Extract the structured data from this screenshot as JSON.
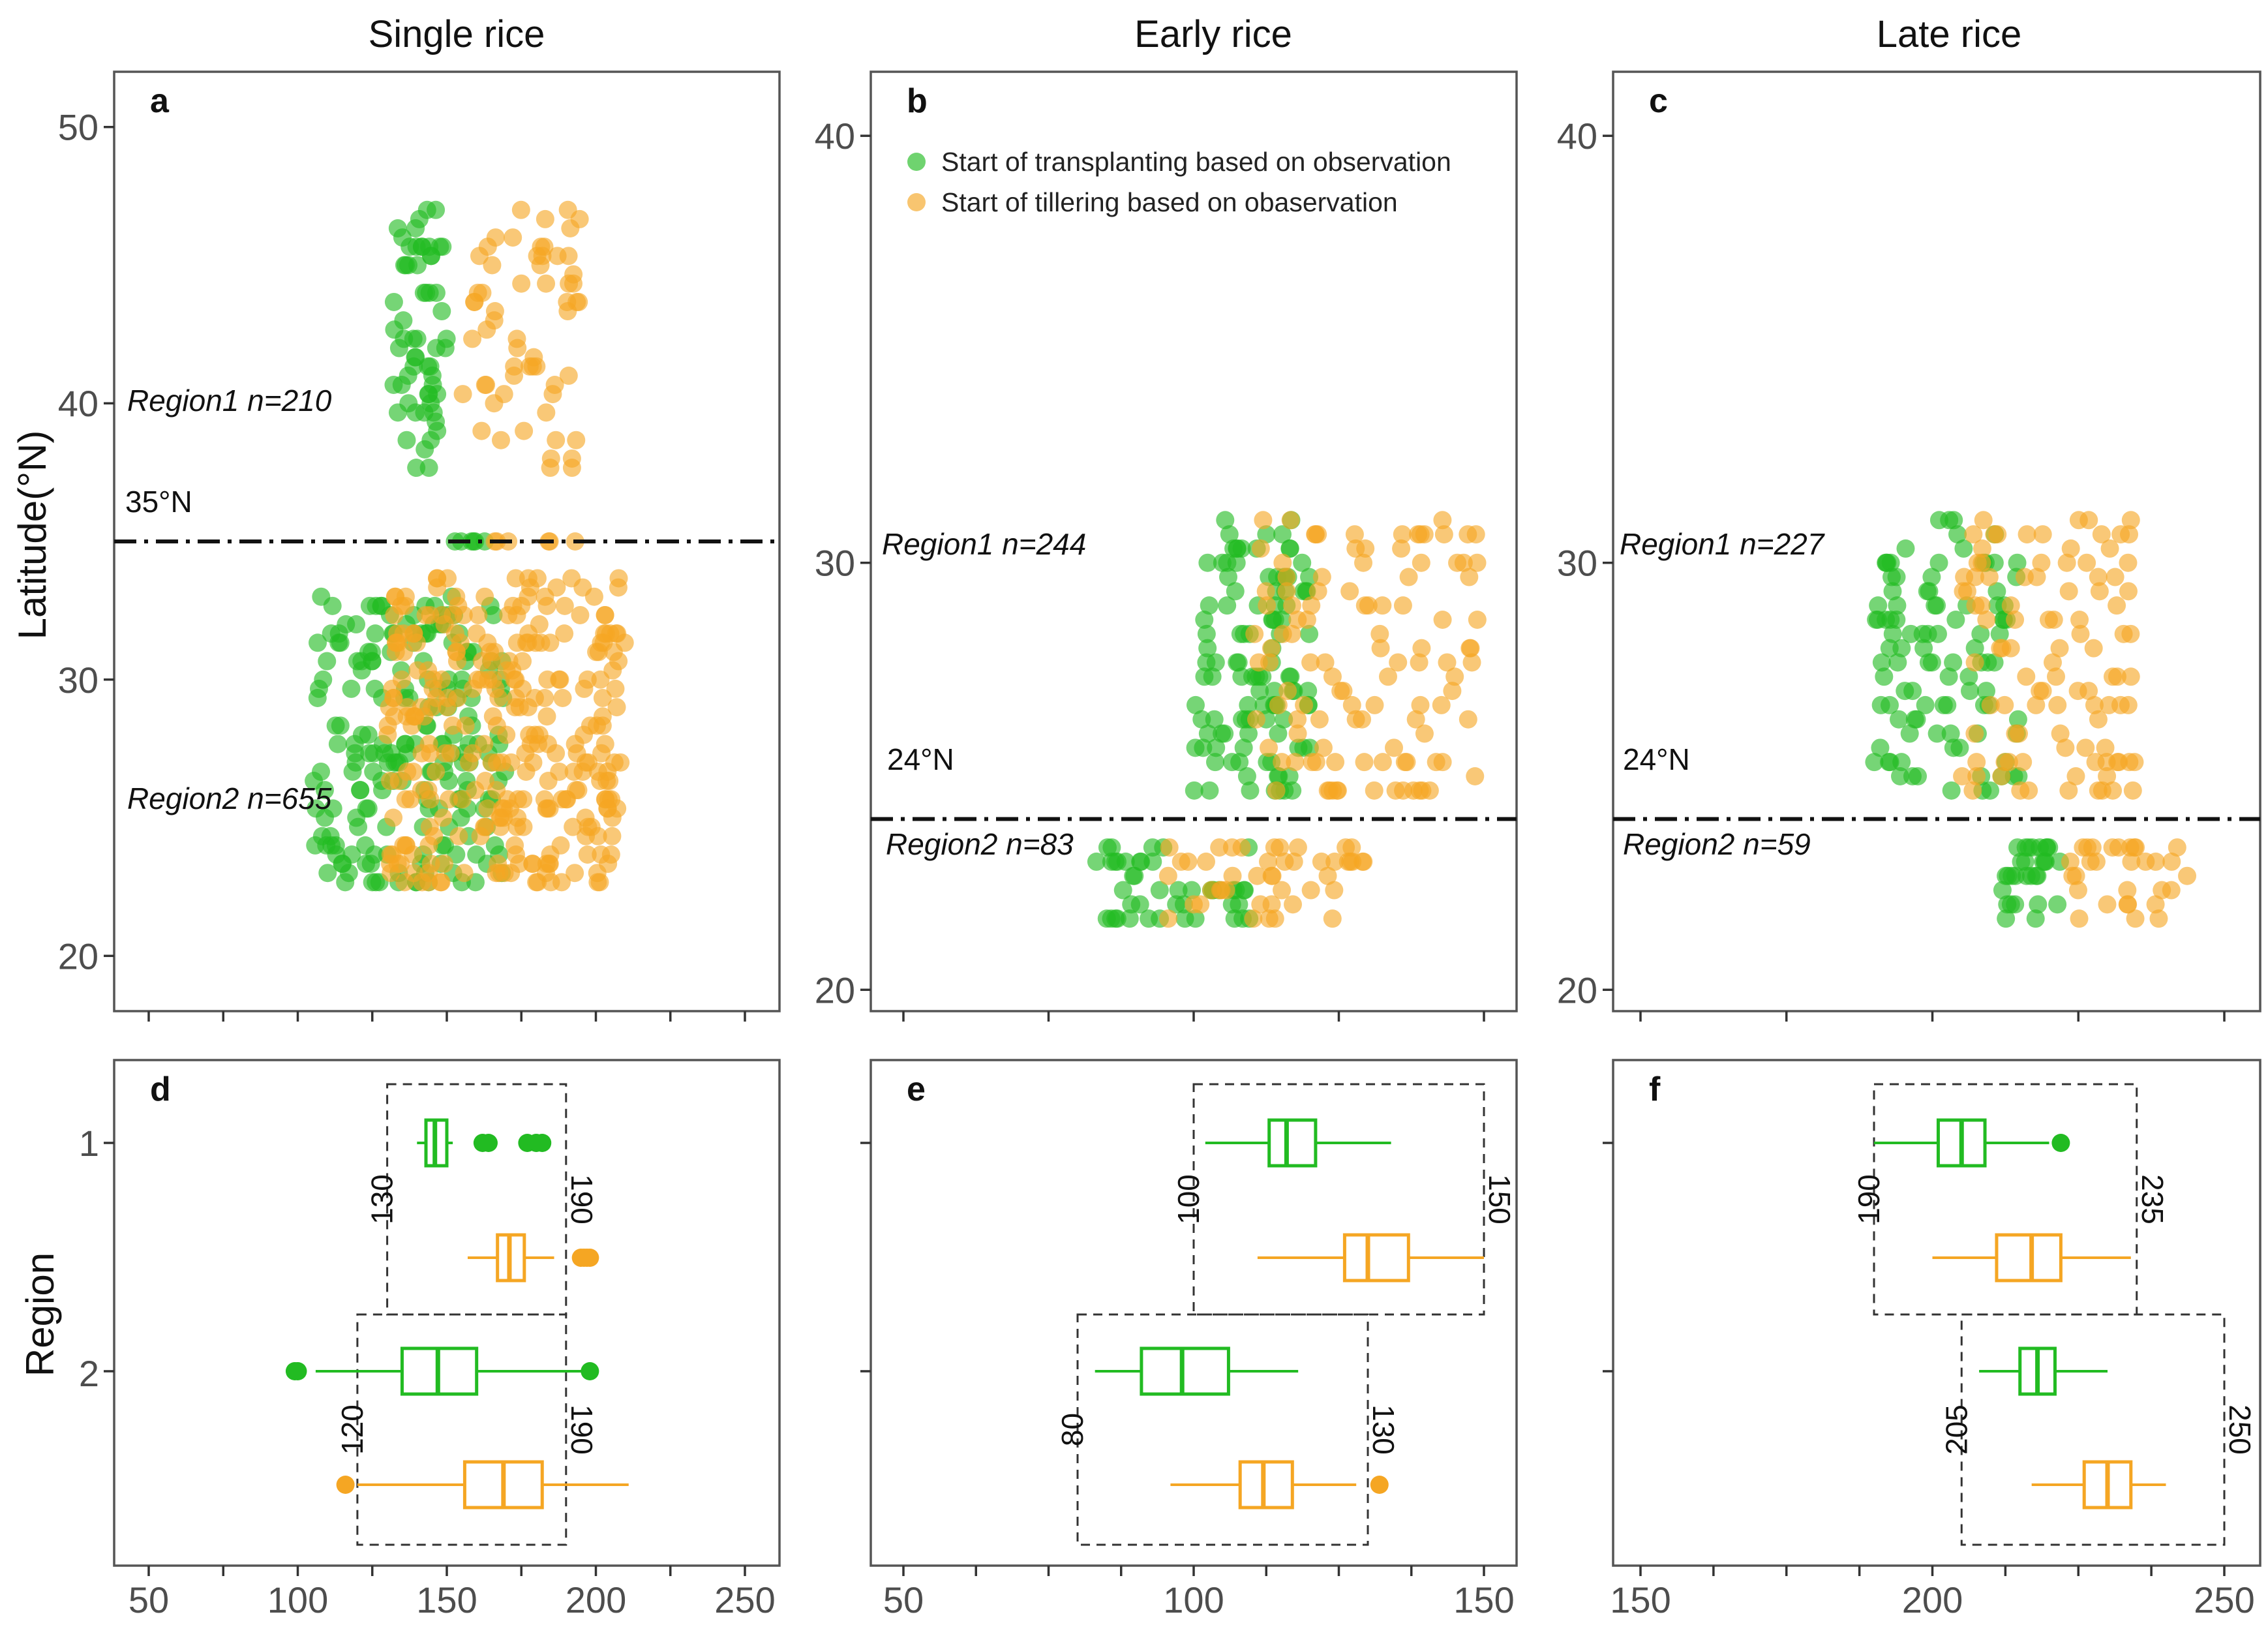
{
  "colors": {
    "transplanting": "#22bb22",
    "tillering": "#f5a623",
    "frame": "#555555"
  },
  "columns": [
    {
      "title": "Single rice"
    },
    {
      "title": "Early rice"
    },
    {
      "title": "Late rice"
    }
  ],
  "axes": {
    "latitude_title": "Latitude(°N)",
    "region_title": "Region",
    "region_ticks": [
      "1",
      "2"
    ]
  },
  "legend": {
    "transplanting": "Start of transplanting based on observation",
    "tillering": "Start of tillering based on obaservation"
  },
  "chart_data": [
    {
      "panel": "a",
      "type": "scatter",
      "title": "Single rice",
      "ylabel": "Latitude(°N)",
      "xlim": [
        50,
        250
      ],
      "ylim": [
        18,
        52
      ],
      "yticks": [
        20,
        30,
        40,
        50
      ],
      "divider": {
        "lat": 35,
        "label": "35°N"
      },
      "region_labels": [
        "Region1 n=210",
        "Region2 n=655"
      ],
      "series": [
        {
          "name": "Start of transplanting based on observation",
          "clusters": [
            {
              "x_range": [
                132,
                150
              ],
              "lat_range": [
                37.5,
                47
              ],
              "n": 60
            },
            {
              "x_range": [
                105,
                170
              ],
              "lat_range": [
                22.5,
                33
              ],
              "n": 200
            },
            {
              "x_range": [
                150,
                165
              ],
              "lat_range": [
                35,
                35
              ],
              "n": 6
            }
          ]
        },
        {
          "name": "Start of tillering based on obaservation",
          "clusters": [
            {
              "x_range": [
                155,
                195
              ],
              "lat_range": [
                37.5,
                47
              ],
              "n": 60
            },
            {
              "x_range": [
                130,
                210
              ],
              "lat_range": [
                22.5,
                34
              ],
              "n": 300
            },
            {
              "x_range": [
                165,
                195
              ],
              "lat_range": [
                35,
                35
              ],
              "n": 6
            }
          ]
        }
      ]
    },
    {
      "panel": "b",
      "type": "scatter",
      "title": "Early rice",
      "xlim": [
        50,
        150
      ],
      "ylim": [
        19.5,
        41.5
      ],
      "yticks": [
        20,
        30,
        40
      ],
      "divider": {
        "lat": 24,
        "label": "24°N"
      },
      "region_labels": [
        "Region1 n=244",
        "Region2 n=83"
      ],
      "series": [
        {
          "name": "Start of transplanting based on observation",
          "clusters": [
            {
              "x_range": [
                100,
                120
              ],
              "lat_range": [
                24.5,
                31
              ],
              "n": 110
            },
            {
              "x_range": [
                82,
                110
              ],
              "lat_range": [
                21.5,
                23.5
              ],
              "n": 45
            }
          ]
        },
        {
          "name": "Start of tillering based on obaservation",
          "clusters": [
            {
              "x_range": [
                110,
                150
              ],
              "lat_range": [
                24.5,
                31
              ],
              "n": 110
            },
            {
              "x_range": [
                95,
                130
              ],
              "lat_range": [
                21.5,
                23.5
              ],
              "n": 45
            }
          ]
        }
      ]
    },
    {
      "panel": "c",
      "type": "scatter",
      "title": "Late rice",
      "xlim": [
        150,
        250
      ],
      "ylim": [
        19.5,
        41.5
      ],
      "yticks": [
        20,
        30,
        40
      ],
      "divider": {
        "lat": 24,
        "label": "24°N"
      },
      "region_labels": [
        "Region1 n=227",
        "Region2 n=59"
      ],
      "series": [
        {
          "name": "Start of transplanting based on observation",
          "clusters": [
            {
              "x_range": [
                190,
                215
              ],
              "lat_range": [
                24.5,
                31
              ],
              "n": 100
            },
            {
              "x_range": [
                212,
                222
              ],
              "lat_range": [
                21.5,
                23.5
              ],
              "n": 30
            }
          ]
        },
        {
          "name": "Start of tillering based on obaservation",
          "clusters": [
            {
              "x_range": [
                205,
                235
              ],
              "lat_range": [
                24.5,
                31
              ],
              "n": 100
            },
            {
              "x_range": [
                222,
                245
              ],
              "lat_range": [
                21.5,
                23.5
              ],
              "n": 30
            }
          ]
        }
      ]
    },
    {
      "panel": "d",
      "type": "boxplot",
      "xlim": [
        50,
        250
      ],
      "xticks": [
        50,
        100,
        150,
        200,
        250
      ],
      "ylabel": "Region",
      "boxes": [
        {
          "region": "1",
          "series": "transplanting",
          "min": 140,
          "q1": 143,
          "median": 146,
          "q3": 150,
          "max": 152,
          "outliers": [
            162,
            164,
            177,
            180,
            182
          ]
        },
        {
          "region": "1",
          "series": "tillering",
          "min": 157,
          "q1": 167,
          "median": 171,
          "q3": 176,
          "max": 186,
          "outliers": [
            195,
            196,
            197,
            198
          ]
        },
        {
          "region": "2",
          "series": "transplanting",
          "min": 106,
          "q1": 135,
          "median": 147,
          "q3": 160,
          "max": 196,
          "outliers": [
            99,
            100,
            198
          ]
        },
        {
          "region": "2",
          "series": "tillering",
          "min": 120,
          "q1": 156,
          "median": 169,
          "q3": 182,
          "max": 211,
          "outliers": [
            116
          ]
        }
      ],
      "windows": [
        {
          "region": "1",
          "from": 130,
          "to": 190,
          "labels": [
            "130",
            "190"
          ]
        },
        {
          "region": "2",
          "from": 120,
          "to": 190,
          "labels": [
            "120",
            "190"
          ]
        }
      ]
    },
    {
      "panel": "e",
      "type": "boxplot",
      "xlim": [
        50,
        150
      ],
      "xticks": [
        50,
        100,
        150
      ],
      "boxes": [
        {
          "region": "1",
          "series": "transplanting",
          "min": 102,
          "q1": 113,
          "median": 116,
          "q3": 121,
          "max": 134,
          "outliers": []
        },
        {
          "region": "1",
          "series": "tillering",
          "min": 111,
          "q1": 126,
          "median": 130,
          "q3": 137,
          "max": 150,
          "outliers": []
        },
        {
          "region": "2",
          "series": "transplanting",
          "min": 83,
          "q1": 91,
          "median": 98,
          "q3": 106,
          "max": 118,
          "outliers": []
        },
        {
          "region": "2",
          "series": "tillering",
          "min": 96,
          "q1": 108,
          "median": 112,
          "q3": 117,
          "max": 128,
          "outliers": [
            132
          ]
        }
      ],
      "windows": [
        {
          "region": "1",
          "from": 100,
          "to": 150,
          "labels": [
            "100",
            "150"
          ]
        },
        {
          "region": "2",
          "from": 80,
          "to": 130,
          "labels": [
            "80",
            "130"
          ]
        }
      ]
    },
    {
      "panel": "f",
      "type": "boxplot",
      "xlim": [
        150,
        250
      ],
      "xticks": [
        150,
        200,
        250
      ],
      "boxes": [
        {
          "region": "1",
          "series": "transplanting",
          "min": 190,
          "q1": 201,
          "median": 205,
          "q3": 209,
          "max": 220,
          "outliers": [
            222
          ]
        },
        {
          "region": "1",
          "series": "tillering",
          "min": 200,
          "q1": 211,
          "median": 217,
          "q3": 222,
          "max": 234,
          "outliers": []
        },
        {
          "region": "2",
          "series": "transplanting",
          "min": 208,
          "q1": 215,
          "median": 218,
          "q3": 221,
          "max": 230,
          "outliers": []
        },
        {
          "region": "2",
          "series": "tillering",
          "min": 217,
          "q1": 226,
          "median": 230,
          "q3": 234,
          "max": 240,
          "outliers": []
        }
      ],
      "windows": [
        {
          "region": "1",
          "from": 190,
          "to": 235,
          "labels": [
            "190",
            "235"
          ]
        },
        {
          "region": "2",
          "from": 205,
          "to": 250,
          "labels": [
            "205",
            "250"
          ]
        }
      ]
    }
  ]
}
